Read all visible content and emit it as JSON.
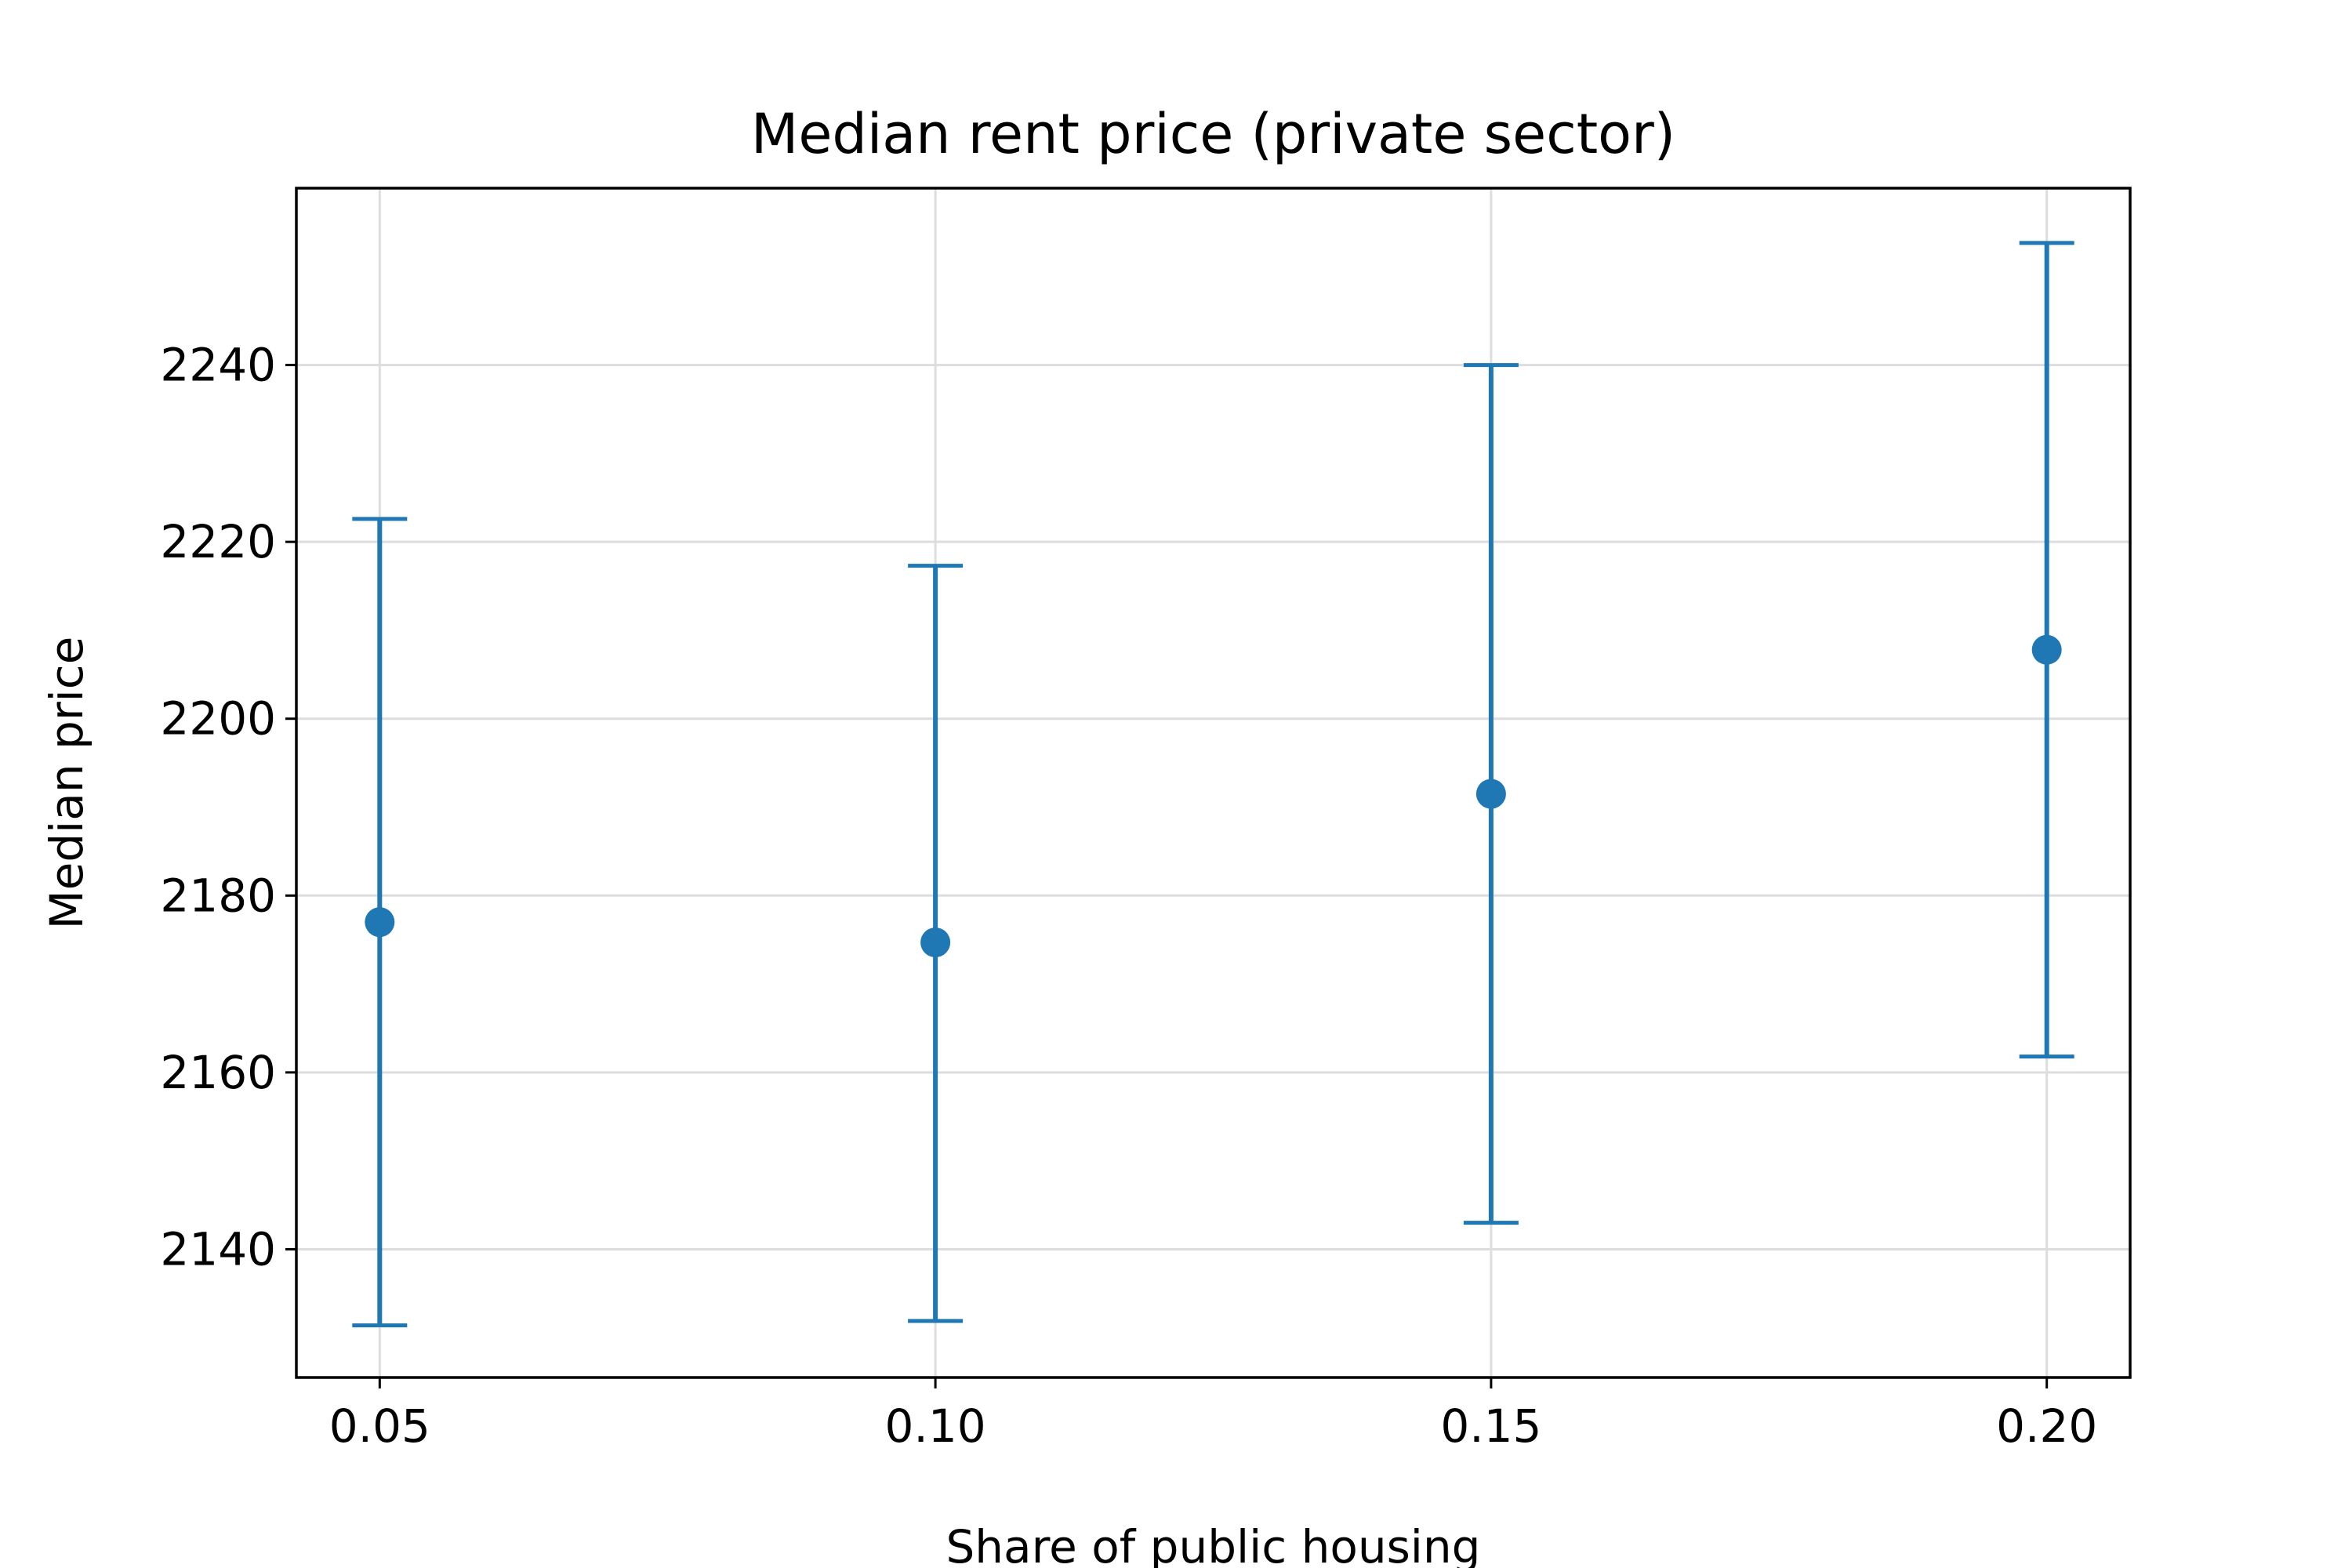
{
  "chart_data": {
    "type": "scatter",
    "title": "Median rent price (private sector)",
    "xlabel": "Share of public housing",
    "ylabel": "Median price",
    "x": [
      0.05,
      0.1,
      0.15,
      0.2
    ],
    "x_tick_labels": [
      "0.05",
      "0.10",
      "0.15",
      "0.20"
    ],
    "y_ticks": [
      2140,
      2160,
      2180,
      2200,
      2220,
      2240
    ],
    "y_tick_labels": [
      "2140",
      "2160",
      "2180",
      "2200",
      "2220",
      "2240"
    ],
    "xlim": [
      0.0425,
      0.2075
    ],
    "ylim": [
      2125.5,
      2260.0
    ],
    "grid": true,
    "series": [
      {
        "values": [
          2177.0,
          2174.7,
          2191.5,
          2207.8
        ],
        "error_low": [
          2131.4,
          2131.9,
          2143.0,
          2161.8
        ],
        "error_high": [
          2222.6,
          2217.3,
          2240.0,
          2253.8
        ],
        "color": "#1f77b4"
      }
    ],
    "colors": {
      "series": "#1f77b4",
      "grid": "#dddddd",
      "axis": "#000000"
    }
  }
}
